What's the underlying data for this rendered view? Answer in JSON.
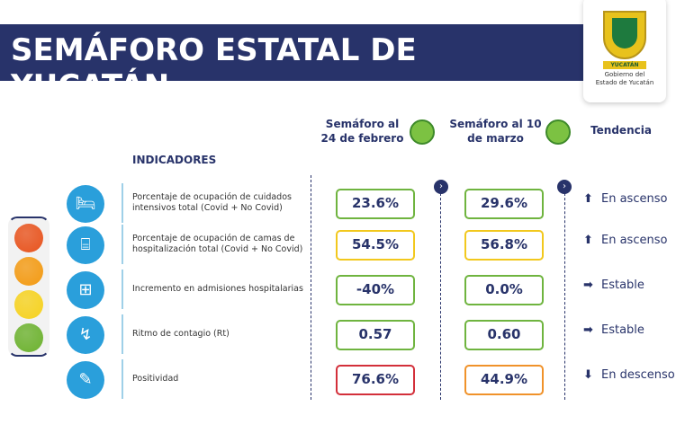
{
  "title": "SEMÁFORO ESTATAL DE YUCATÁN",
  "logo": {
    "ribbon": "YUCATÁN",
    "line1": "Gobierno del",
    "line2": "Estado de Yucatán"
  },
  "header": {
    "col1_line1": "Semáforo al",
    "col1_line2": "24 de febrero",
    "col1_color": "#7cc242",
    "col2_line1": "Semáforo al 10",
    "col2_line2": "de marzo",
    "col2_color": "#7cc242",
    "trend": "Tendencia",
    "indicators": "INDICADORES"
  },
  "traffic_light": [
    "#e8531d",
    "#f39a12",
    "#f6d21e",
    "#6cb22e"
  ],
  "rows": [
    {
      "label": "Porcentaje de ocupación de cuidados intensivos total (Covid + No Covid)",
      "icon": "icu-bed-icon",
      "v1": "23.6%",
      "c1": "#6fb43f",
      "v2": "29.6%",
      "c2": "#6fb43f",
      "trend": "En ascenso",
      "arrow": "up"
    },
    {
      "label": "Porcentaje de ocupación de camas de hospitalización total (Covid + No Covid)",
      "icon": "hospital-bed-icon",
      "v1": "54.5%",
      "c1": "#f2c81d",
      "v2": "56.8%",
      "c2": "#f2c81d",
      "trend": "En ascenso",
      "arrow": "up"
    },
    {
      "label": "Incremento en admisiones hospitalarias",
      "icon": "ambulance-icon",
      "v1": "-40%",
      "c1": "#6fb43f",
      "v2": "0.0%",
      "c2": "#6fb43f",
      "trend": "Estable",
      "arrow": "right"
    },
    {
      "label": "Ritmo de contagio (Rt)",
      "icon": "chart-icon",
      "v1": "0.57",
      "c1": "#6fb43f",
      "v2": "0.60",
      "c2": "#6fb43f",
      "trend": "Estable",
      "arrow": "right"
    },
    {
      "label": "Positividad",
      "icon": "test-swab-icon",
      "v1": "76.6%",
      "c1": "#d32f3a",
      "v2": "44.9%",
      "c2": "#f0922a",
      "trend": "En descenso",
      "arrow": "down"
    }
  ]
}
